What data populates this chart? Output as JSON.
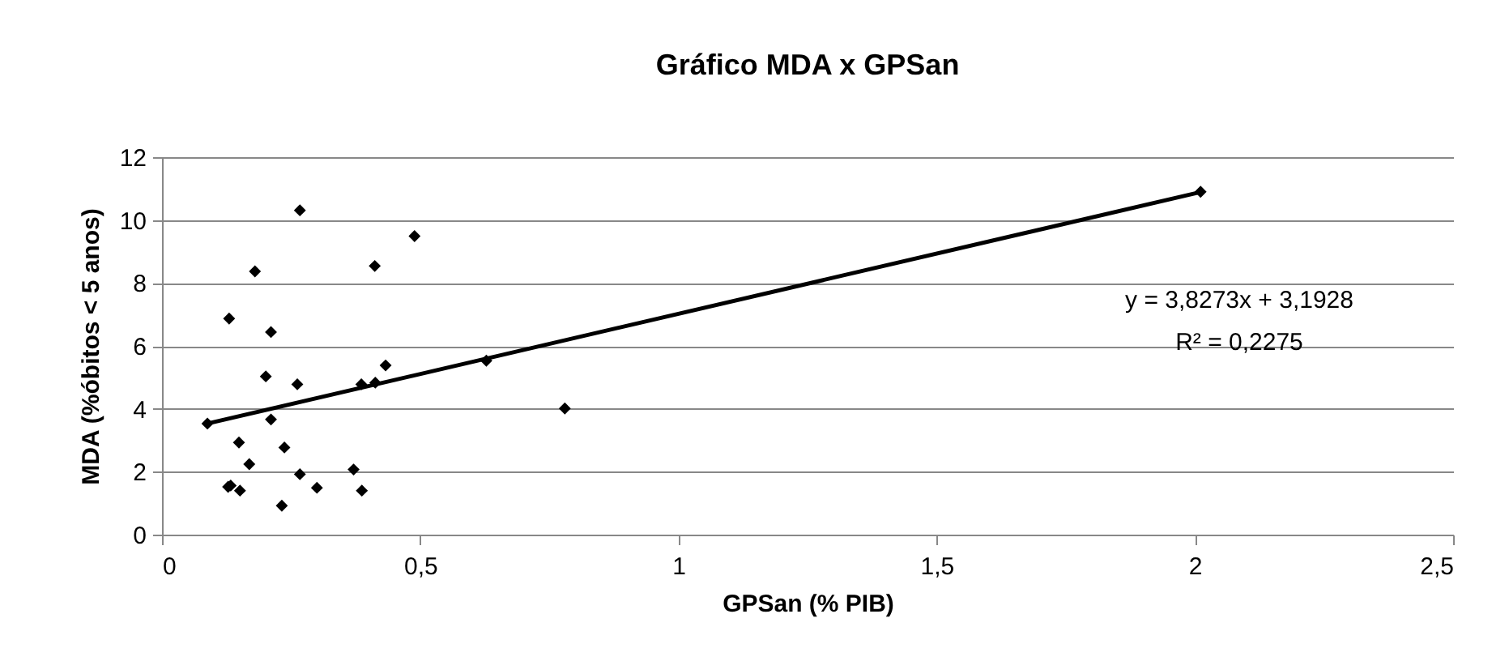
{
  "chart_data": {
    "type": "scatter",
    "title": "Gráfico MDA x GPSan",
    "xlabel": "GPSan (% PIB)",
    "ylabel": "MDA (%óbitos < 5 anos)",
    "xlim": [
      0,
      2.5
    ],
    "ylim": [
      0,
      12
    ],
    "xticks": [
      0,
      {
        "value": 0.5,
        "label": "0,5"
      },
      1,
      {
        "value": 1.5,
        "label": "1,5"
      },
      2,
      {
        "value": 2.5,
        "label": "2,5"
      }
    ],
    "yticks": [
      0,
      2,
      4,
      6,
      8,
      10,
      12
    ],
    "grid": "y",
    "series": [
      {
        "color": "#000000",
        "marker": "diamond",
        "x": [
          0.267,
          0.489,
          0.18,
          0.412,
          0.13,
          0.211,
          0.201,
          0.262,
          0.386,
          0.413,
          0.433,
          0.088,
          0.211,
          0.149,
          0.237,
          0.169,
          0.133,
          0.151,
          0.128,
          0.267,
          0.3,
          0.371,
          0.387,
          0.232,
          0.628,
          0.78,
          2.011
        ],
        "values": [
          10.31,
          9.49,
          8.37,
          8.54,
          6.87,
          6.44,
          5.03,
          4.78,
          4.78,
          4.83,
          5.38,
          3.53,
          3.66,
          2.93,
          2.77,
          2.24,
          1.56,
          1.4,
          1.52,
          1.92,
          1.49,
          2.07,
          1.4,
          0.92,
          5.53,
          4.01,
          10.9
        ]
      },
      {
        "type": "line",
        "color": "#000000",
        "x": [
          0.088,
          2.011
        ],
        "values": [
          3.53,
          10.89
        ]
      }
    ],
    "annotations": [
      "y = 3,8273x + 3,1928",
      "R² = 0,2275"
    ]
  }
}
